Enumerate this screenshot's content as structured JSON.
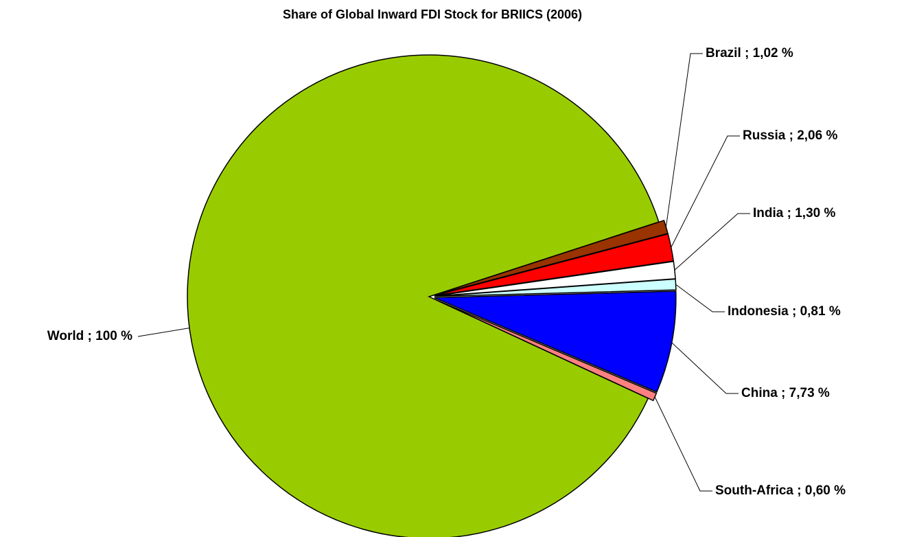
{
  "chart_data": {
    "type": "pie",
    "title": "Share of Global Inward FDI Stock for BRIICS (2006)",
    "values": [
      1.02,
      2.06,
      1.3,
      0.81,
      7.73,
      0.6,
      100
    ],
    "value_labels": [
      "Brazil ; 1,02 %",
      "Russia ; 2,06 %",
      "India ; 1,30 %",
      "Indonesia ; 0,81 %",
      "China ; 7,73 %",
      "South-Africa ; 0,60 %",
      "World ; 100 %"
    ],
    "colors": [
      "#993300",
      "#ff0000",
      "#ffffff",
      "#ccffff",
      "#0000ff",
      "#ff8080",
      "#99cc00"
    ]
  }
}
